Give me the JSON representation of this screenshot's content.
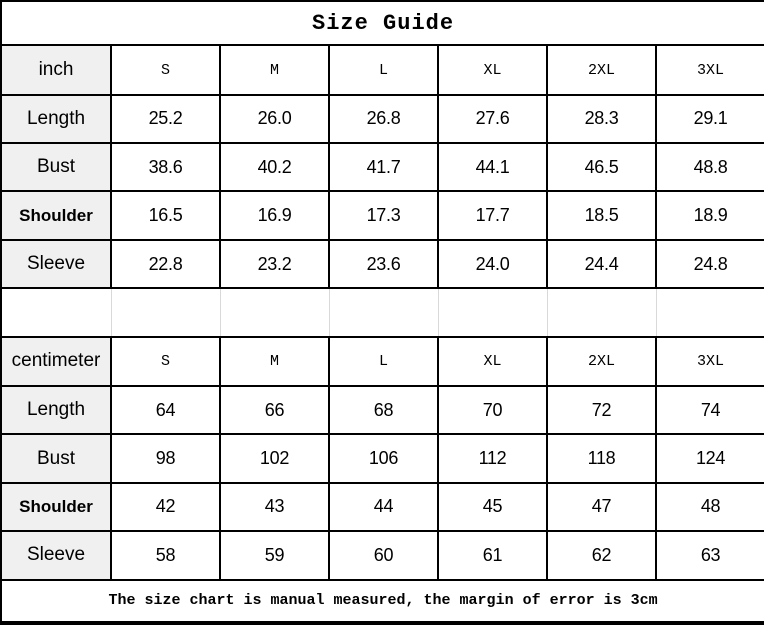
{
  "t": {
    "title": "Size Guide",
    "sizes": [
      "S",
      "M",
      "L",
      "XL",
      "2XL",
      "3XL"
    ],
    "row_labels": {
      "length": "Length",
      "bust": "Bust",
      "shoulder": "Shoulder",
      "sleeve": "Sleeve"
    },
    "inch": {
      "unit": "inch",
      "length": [
        "25.2",
        "26.0",
        "26.8",
        "27.6",
        "28.3",
        "29.1"
      ],
      "bust": [
        "38.6",
        "40.2",
        "41.7",
        "44.1",
        "46.5",
        "48.8"
      ],
      "shoulder": [
        "16.5",
        "16.9",
        "17.3",
        "17.7",
        "18.5",
        "18.9"
      ],
      "sleeve": [
        "22.8",
        "23.2",
        "23.6",
        "24.0",
        "24.4",
        "24.8"
      ]
    },
    "cm": {
      "unit": "centimeter",
      "length": [
        "64",
        "66",
        "68",
        "70",
        "72",
        "74"
      ],
      "bust": [
        "98",
        "102",
        "106",
        "112",
        "118",
        "124"
      ],
      "shoulder": [
        "42",
        "43",
        "44",
        "45",
        "47",
        "48"
      ],
      "sleeve": [
        "58",
        "59",
        "60",
        "61",
        "62",
        "63"
      ]
    },
    "footer": "The size chart is manual measured, the margin of error is 3cm"
  },
  "colors": {
    "border": "#000000",
    "label_column_bg": "#f0f0f0",
    "empty_row_divider": "#d9d9d9",
    "text": "#000000"
  },
  "chart_data": {
    "type": "table",
    "title": "Size Guide",
    "columns": [
      "S",
      "M",
      "L",
      "XL",
      "2XL",
      "3XL"
    ],
    "sections": [
      {
        "unit": "inch",
        "rows": [
          {
            "label": "Length",
            "values": [
              25.2,
              26.0,
              26.8,
              27.6,
              28.3,
              29.1
            ]
          },
          {
            "label": "Bust",
            "values": [
              38.6,
              40.2,
              41.7,
              44.1,
              46.5,
              48.8
            ]
          },
          {
            "label": "Shoulder",
            "values": [
              16.5,
              16.9,
              17.3,
              17.7,
              18.5,
              18.9
            ]
          },
          {
            "label": "Sleeve",
            "values": [
              22.8,
              23.2,
              23.6,
              24.0,
              24.4,
              24.8
            ]
          }
        ]
      },
      {
        "unit": "centimeter",
        "rows": [
          {
            "label": "Length",
            "values": [
              64,
              66,
              68,
              70,
              72,
              74
            ]
          },
          {
            "label": "Bust",
            "values": [
              98,
              102,
              106,
              112,
              118,
              124
            ]
          },
          {
            "label": "Shoulder",
            "values": [
              42,
              43,
              44,
              45,
              47,
              48
            ]
          },
          {
            "label": "Sleeve",
            "values": [
              58,
              59,
              60,
              61,
              62,
              63
            ]
          }
        ]
      }
    ],
    "note": "The size chart is manual measured, the margin of error is 3cm",
    "layout": {
      "grid": true,
      "label_column_shaded": true
    }
  }
}
